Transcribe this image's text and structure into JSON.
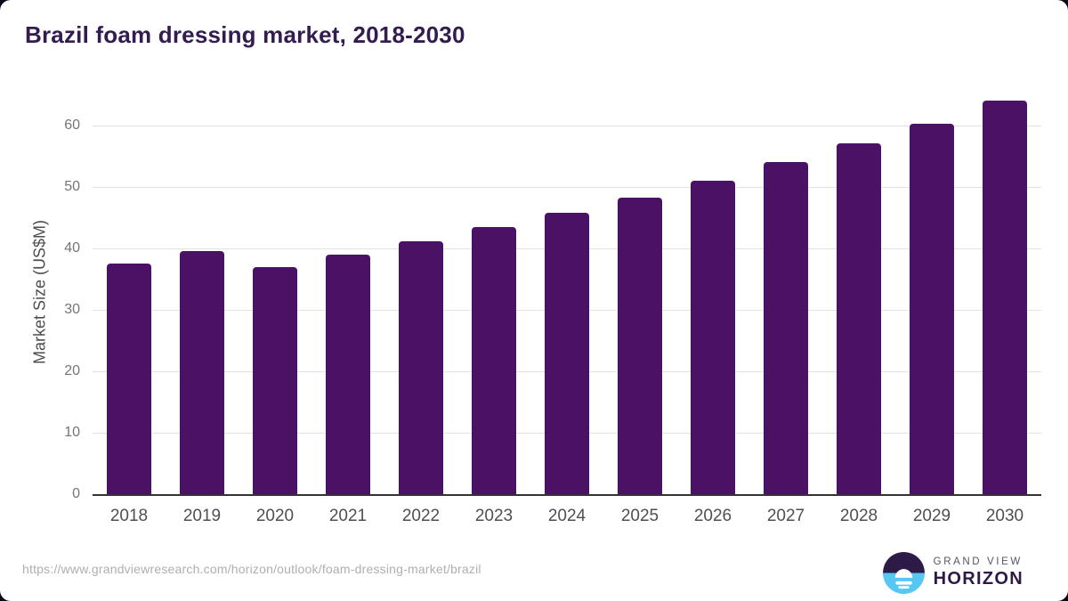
{
  "chart_data": {
    "type": "bar",
    "title": "Brazil foam dressing market, 2018-2030",
    "categories": [
      "2018",
      "2019",
      "2020",
      "2021",
      "2022",
      "2023",
      "2024",
      "2025",
      "2026",
      "2027",
      "2028",
      "2029",
      "2030"
    ],
    "values": [
      37.6,
      39.6,
      37.0,
      39.0,
      41.2,
      43.5,
      45.8,
      48.3,
      51.0,
      54.1,
      57.1,
      60.4,
      64.1
    ],
    "xlabel": "",
    "ylabel": "Market Size (US$M)",
    "ylim": [
      0,
      66
    ],
    "yticks": [
      0,
      10,
      20,
      30,
      40,
      50,
      60
    ],
    "grid": "horizontal",
    "legend": "none",
    "bar_color": "#4a1164"
  },
  "footer": {
    "source_url": "https://www.grandviewresearch.com/horizon/outlook/foam-dressing-market/brazil",
    "logo": {
      "line1": "GRAND VIEW",
      "line2": "HORIZON",
      "icon": "horizon-sun-circle-icon",
      "purple": "#2e1a47",
      "blue": "#56c7f2"
    }
  },
  "colors": {
    "title": "#331c4f",
    "bar": "#4a1164",
    "gridline": "#e2e2e2",
    "axis_line": "#333333",
    "tick_text": "#757575",
    "x_tick_text": "#4f4f4f",
    "source_text": "#b1aeae"
  }
}
